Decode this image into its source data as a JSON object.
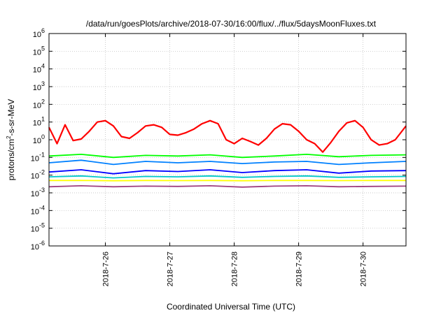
{
  "chart_data": {
    "type": "line",
    "title": "/data/run/goesPlots/archive/2018-07-30/16:00/flux/../flux/5daysMoonFluxes.txt",
    "xlabel": "Coordinated Universal Time (UTC)",
    "ylabel_main": "protons/cm",
    "ylabel_sup": "2",
    "ylabel_rest": "-s-sr-MeV",
    "y_scale": "log",
    "ylim": [
      1e-06,
      1000000.0
    ],
    "y_ticks": [
      {
        "base": "10",
        "exp": "-6",
        "value": 1e-06
      },
      {
        "base": "10",
        "exp": "-5",
        "value": 1e-05
      },
      {
        "base": "10",
        "exp": "-4",
        "value": 0.0001
      },
      {
        "base": "10",
        "exp": "-3",
        "value": 0.001
      },
      {
        "base": "10",
        "exp": "-2",
        "value": 0.01
      },
      {
        "base": "10",
        "exp": "-1",
        "value": 0.1
      },
      {
        "base": "10",
        "exp": "0",
        "value": 1
      },
      {
        "base": "10",
        "exp": "1",
        "value": 10
      },
      {
        "base": "10",
        "exp": "2",
        "value": 100
      },
      {
        "base": "10",
        "exp": "3",
        "value": 1000
      },
      {
        "base": "10",
        "exp": "4",
        "value": 10000
      },
      {
        "base": "10",
        "exp": "5",
        "value": 100000
      },
      {
        "base": "10",
        "exp": "6",
        "value": 1000000
      }
    ],
    "xlim": [
      "2018-07-25T03:00",
      "2018-07-30T16:00"
    ],
    "x_ticks": [
      {
        "label": "2018-7-26",
        "value": "2018-07-26T00:00"
      },
      {
        "label": "2018-7-27",
        "value": "2018-07-27T00:00"
      },
      {
        "label": "2018-7-28",
        "value": "2018-07-28T00:00"
      },
      {
        "label": "2018-7-29",
        "value": "2018-07-29T00:00"
      },
      {
        "label": "2018-7-30",
        "value": "2018-07-30T00:00"
      }
    ],
    "grid": true,
    "series": [
      {
        "color": "#ff0000",
        "x": [
          "2018-07-25T03:00",
          "2018-07-25T06:00",
          "2018-07-25T09:00",
          "2018-07-25T12:00",
          "2018-07-25T15:00",
          "2018-07-25T18:00",
          "2018-07-25T21:00",
          "2018-07-26T00:00",
          "2018-07-26T03:00",
          "2018-07-26T06:00",
          "2018-07-26T09:00",
          "2018-07-26T12:00",
          "2018-07-26T15:00",
          "2018-07-26T18:00",
          "2018-07-26T21:00",
          "2018-07-27T00:00",
          "2018-07-27T03:00",
          "2018-07-27T06:00",
          "2018-07-27T09:00",
          "2018-07-27T12:00",
          "2018-07-27T15:00",
          "2018-07-27T18:00",
          "2018-07-27T21:00",
          "2018-07-28T00:00",
          "2018-07-28T03:00",
          "2018-07-28T06:00",
          "2018-07-28T09:00",
          "2018-07-28T12:00",
          "2018-07-28T15:00",
          "2018-07-28T18:00",
          "2018-07-28T21:00",
          "2018-07-29T00:00",
          "2018-07-29T03:00",
          "2018-07-29T06:00",
          "2018-07-29T09:00",
          "2018-07-29T12:00",
          "2018-07-29T15:00",
          "2018-07-29T18:00",
          "2018-07-29T21:00",
          "2018-07-30T00:00",
          "2018-07-30T03:00",
          "2018-07-30T06:00",
          "2018-07-30T09:00",
          "2018-07-30T12:00",
          "2018-07-30T16:00"
        ],
        "y": [
          5,
          0.6,
          7,
          0.9,
          1.1,
          3,
          10,
          12,
          6,
          1.5,
          1.2,
          2.5,
          6,
          7,
          5,
          2,
          1.8,
          2.5,
          4,
          8,
          12,
          8,
          1,
          0.6,
          1.2,
          0.8,
          0.5,
          1.2,
          4,
          8,
          7,
          3,
          1,
          0.6,
          0.2,
          0.7,
          3,
          9,
          12,
          5,
          1,
          0.5,
          0.6,
          1,
          6
        ]
      },
      {
        "color": "#00ff00",
        "x": [
          "2018-07-25T03:00",
          "2018-07-25T15:00",
          "2018-07-26T03:00",
          "2018-07-26T15:00",
          "2018-07-27T03:00",
          "2018-07-27T15:00",
          "2018-07-28T03:00",
          "2018-07-28T15:00",
          "2018-07-29T03:00",
          "2018-07-29T15:00",
          "2018-07-30T03:00",
          "2018-07-30T16:00"
        ],
        "y": [
          0.12,
          0.15,
          0.1,
          0.13,
          0.12,
          0.14,
          0.1,
          0.12,
          0.15,
          0.11,
          0.13,
          0.14
        ]
      },
      {
        "color": "#0080ff",
        "x": [
          "2018-07-25T03:00",
          "2018-07-25T15:00",
          "2018-07-26T03:00",
          "2018-07-26T15:00",
          "2018-07-27T03:00",
          "2018-07-27T15:00",
          "2018-07-28T03:00",
          "2018-07-28T15:00",
          "2018-07-29T03:00",
          "2018-07-29T15:00",
          "2018-07-30T03:00",
          "2018-07-30T16:00"
        ],
        "y": [
          0.05,
          0.07,
          0.04,
          0.06,
          0.05,
          0.06,
          0.045,
          0.055,
          0.06,
          0.04,
          0.05,
          0.06
        ]
      },
      {
        "color": "#0000ff",
        "x": [
          "2018-07-25T03:00",
          "2018-07-25T15:00",
          "2018-07-26T03:00",
          "2018-07-26T15:00",
          "2018-07-27T03:00",
          "2018-07-27T15:00",
          "2018-07-28T03:00",
          "2018-07-28T15:00",
          "2018-07-29T03:00",
          "2018-07-29T15:00",
          "2018-07-30T03:00",
          "2018-07-30T16:00"
        ],
        "y": [
          0.015,
          0.02,
          0.012,
          0.018,
          0.016,
          0.02,
          0.014,
          0.018,
          0.02,
          0.013,
          0.017,
          0.018
        ]
      },
      {
        "color": "#00c8c8",
        "x": [
          "2018-07-25T03:00",
          "2018-07-25T15:00",
          "2018-07-26T03:00",
          "2018-07-26T15:00",
          "2018-07-27T03:00",
          "2018-07-27T15:00",
          "2018-07-28T03:00",
          "2018-07-28T15:00",
          "2018-07-29T03:00",
          "2018-07-29T15:00",
          "2018-07-30T03:00",
          "2018-07-30T16:00"
        ],
        "y": [
          0.008,
          0.009,
          0.007,
          0.0085,
          0.008,
          0.009,
          0.0075,
          0.0085,
          0.009,
          0.0075,
          0.008,
          0.0085
        ]
      },
      {
        "color": "#ffff00",
        "x": [
          "2018-07-25T03:00",
          "2018-07-25T15:00",
          "2018-07-26T03:00",
          "2018-07-26T15:00",
          "2018-07-27T03:00",
          "2018-07-27T15:00",
          "2018-07-28T03:00",
          "2018-07-28T15:00",
          "2018-07-29T03:00",
          "2018-07-29T15:00",
          "2018-07-30T03:00",
          "2018-07-30T16:00"
        ],
        "y": [
          0.005,
          0.005,
          0.0048,
          0.005,
          0.0049,
          0.005,
          0.0048,
          0.005,
          0.005,
          0.0049,
          0.005,
          0.005
        ]
      },
      {
        "color": "#a04080",
        "x": [
          "2018-07-25T03:00",
          "2018-07-25T15:00",
          "2018-07-26T03:00",
          "2018-07-26T15:00",
          "2018-07-27T03:00",
          "2018-07-27T15:00",
          "2018-07-28T03:00",
          "2018-07-28T15:00",
          "2018-07-29T03:00",
          "2018-07-29T15:00",
          "2018-07-30T03:00",
          "2018-07-30T16:00"
        ],
        "y": [
          0.0022,
          0.0025,
          0.0022,
          0.0024,
          0.0023,
          0.0025,
          0.0021,
          0.0024,
          0.0025,
          0.0022,
          0.0023,
          0.0024
        ]
      }
    ]
  }
}
